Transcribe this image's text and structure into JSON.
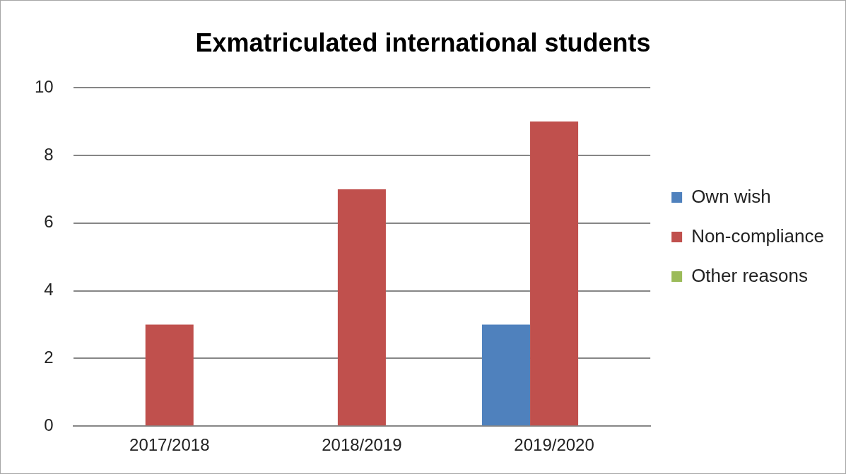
{
  "chart_data": {
    "type": "bar",
    "title": "Exmatriculated international students",
    "categories": [
      "2017/2018",
      "2018/2019",
      "2019/2020"
    ],
    "series": [
      {
        "name": "Own wish",
        "color": "#4f81bd",
        "values": [
          0,
          0,
          3
        ]
      },
      {
        "name": "Non-compliance",
        "color": "#c0504d",
        "values": [
          3,
          7,
          9
        ]
      },
      {
        "name": "Other reasons",
        "color": "#9bbb59",
        "values": [
          0,
          0,
          0
        ]
      }
    ],
    "ylim": [
      0,
      10
    ],
    "yticks": [
      0,
      2,
      4,
      6,
      8,
      10
    ],
    "grid": "y",
    "legend": "right"
  }
}
